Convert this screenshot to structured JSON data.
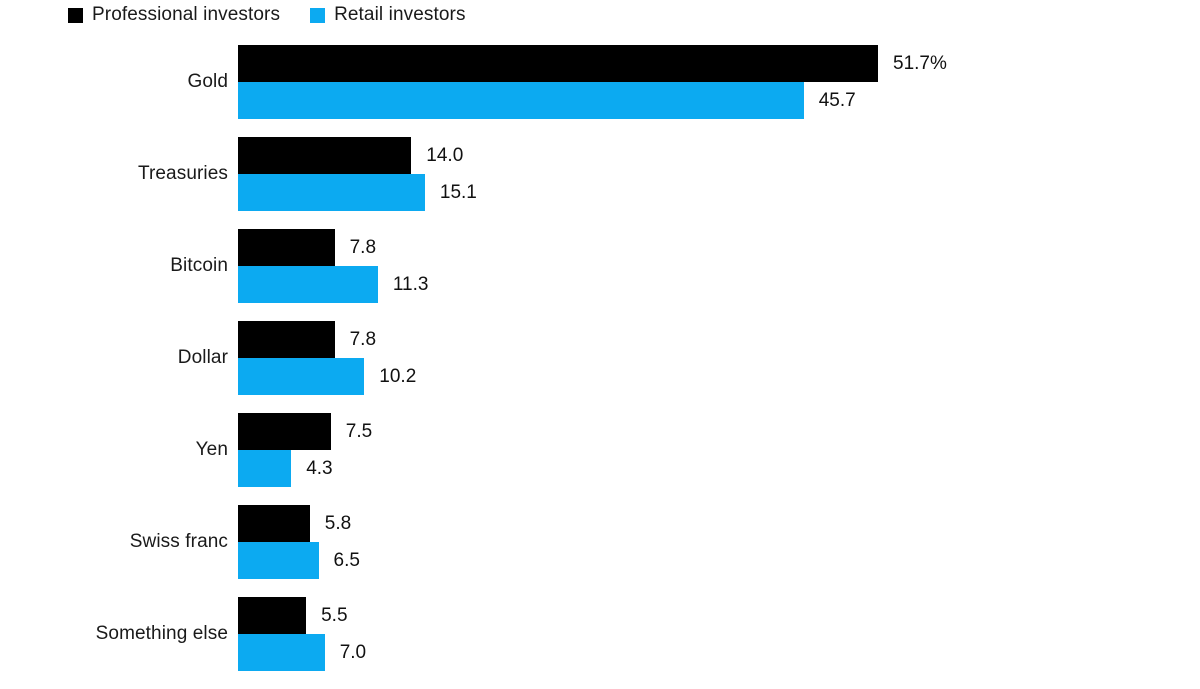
{
  "legend": {
    "items": [
      {
        "label": "Professional investors",
        "color": "#000000"
      },
      {
        "label": "Retail investors",
        "color": "#0caaf1"
      }
    ]
  },
  "chart_data": {
    "type": "bar",
    "orientation": "horizontal",
    "title": "",
    "xlabel": "",
    "ylabel": "",
    "xlim": [
      0,
      51.7
    ],
    "grid": false,
    "legend_position": "top-left",
    "categories": [
      "Gold",
      "Treasuries",
      "Bitcoin",
      "Dollar",
      "Yen",
      "Swiss franc",
      "Something else"
    ],
    "series": [
      {
        "name": "Professional investors",
        "color": "#000000",
        "values": [
          51.7,
          14.0,
          7.8,
          7.8,
          7.5,
          5.8,
          5.5
        ],
        "value_labels": [
          "51.7%",
          "14.0",
          "7.8",
          "7.8",
          "7.5",
          "5.8",
          "5.5"
        ]
      },
      {
        "name": "Retail investors",
        "color": "#0caaf1",
        "values": [
          45.7,
          15.1,
          11.3,
          10.2,
          4.3,
          6.5,
          7.0
        ],
        "value_labels": [
          "45.7",
          "15.1",
          "11.3",
          "10.2",
          "4.3",
          "6.5",
          "7.0"
        ]
      }
    ]
  }
}
